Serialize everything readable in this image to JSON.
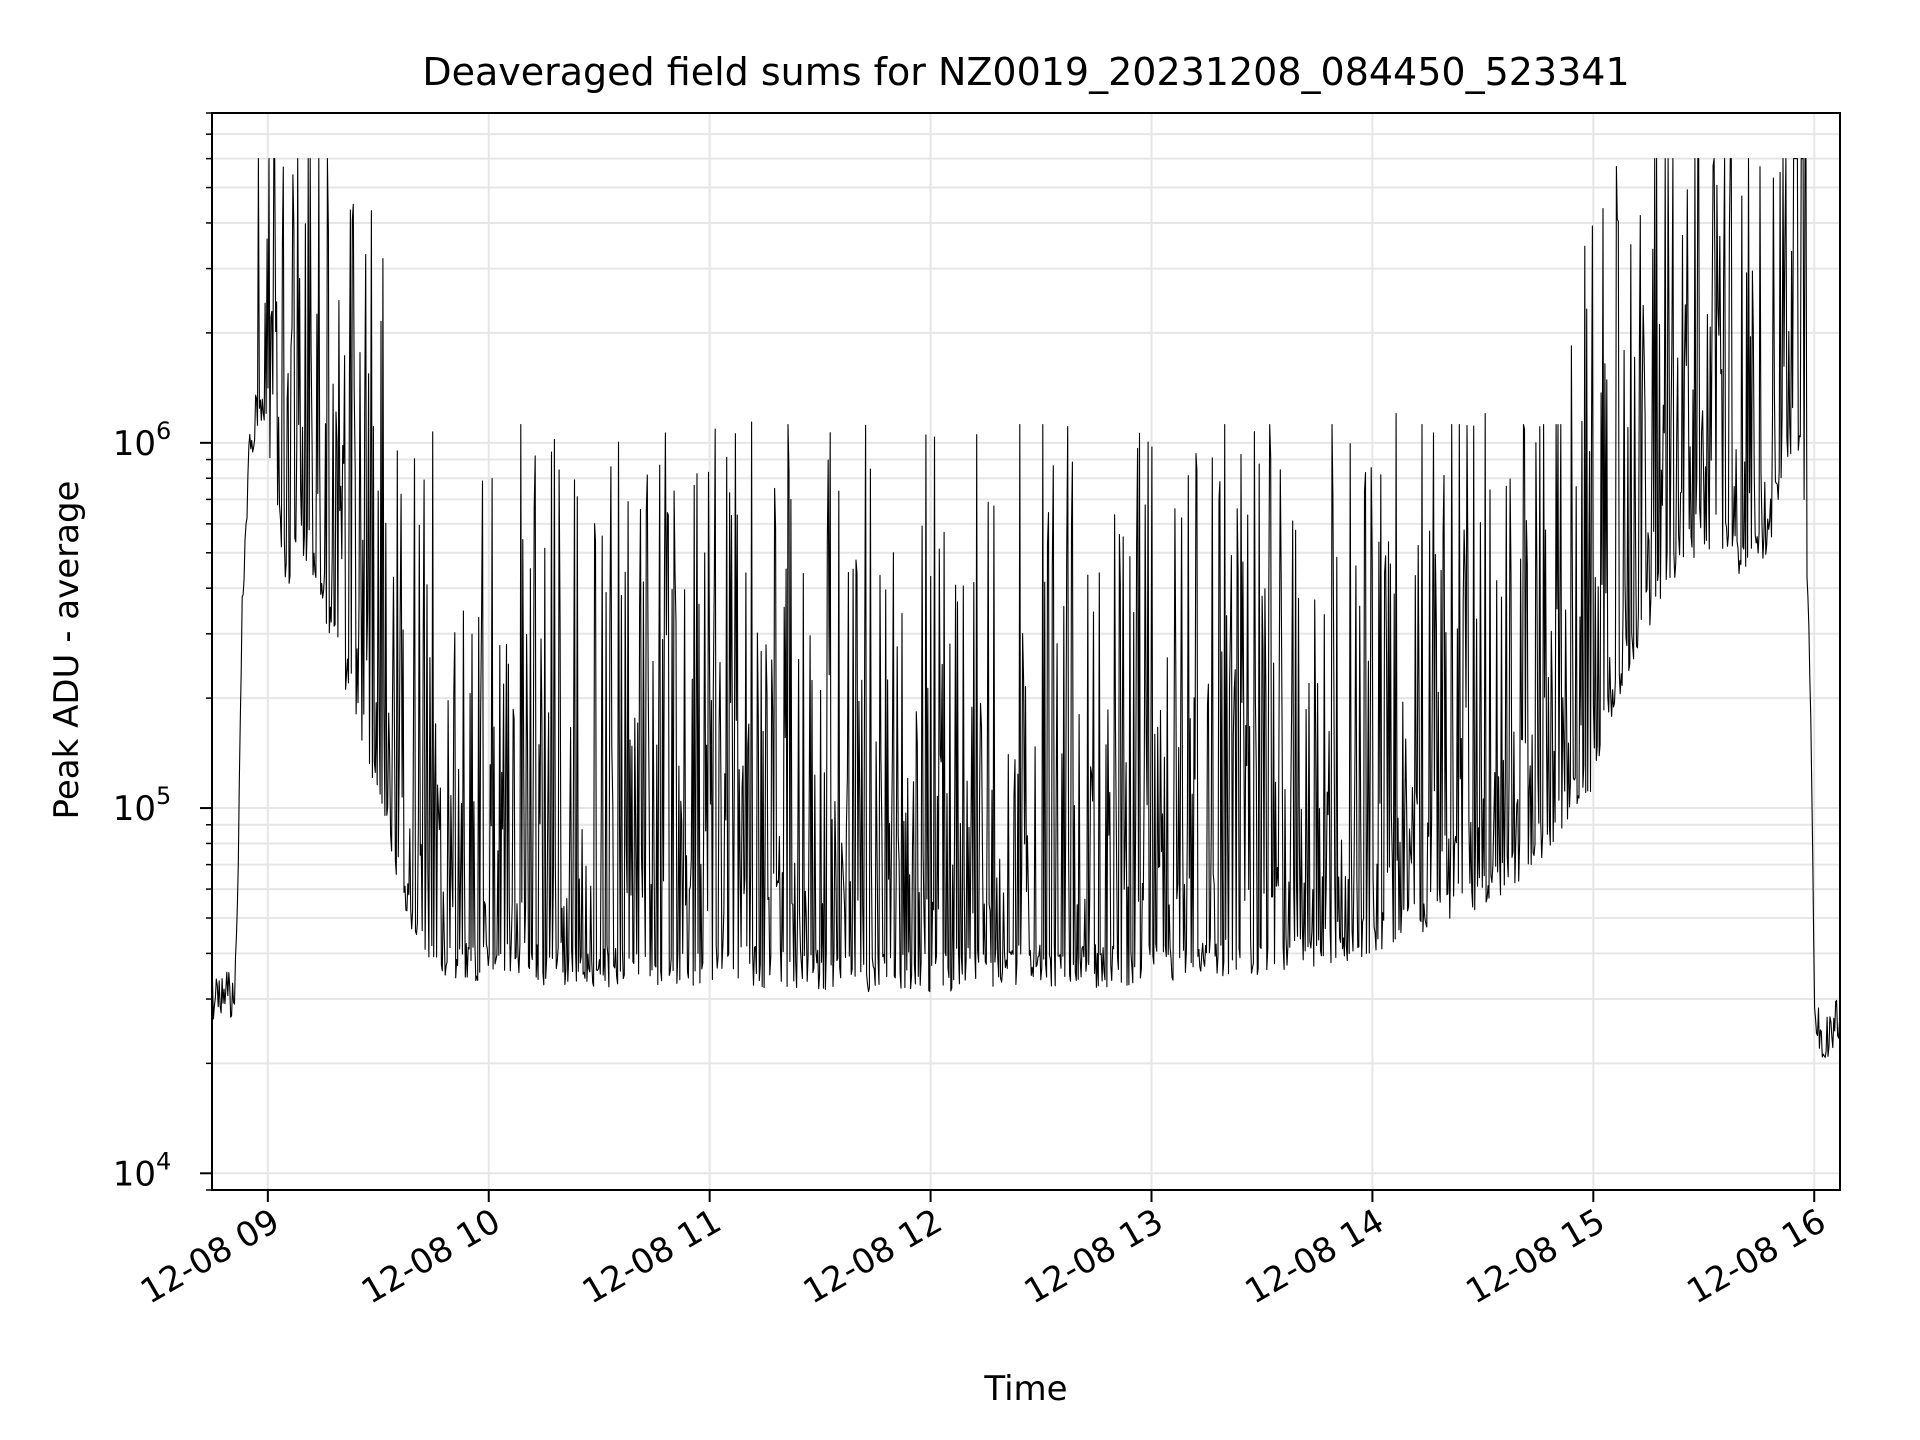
{
  "chart_data": {
    "type": "line",
    "title": "Deaveraged field sums for NZ0019_20231208_084450_523341",
    "xlabel": "Time",
    "ylabel": "Peak ADU - average",
    "yscale": "log",
    "xlim": [
      "2023-12-08 08:44:50",
      "2023-12-08 16:07:00"
    ],
    "ylim": [
      9000,
      8000000
    ],
    "x_ticks": [
      {
        "value": "2023-12-08 09:00",
        "label": "12-08 09"
      },
      {
        "value": "2023-12-08 10:00",
        "label": "12-08 10"
      },
      {
        "value": "2023-12-08 11:00",
        "label": "12-08 11"
      },
      {
        "value": "2023-12-08 12:00",
        "label": "12-08 12"
      },
      {
        "value": "2023-12-08 13:00",
        "label": "12-08 13"
      },
      {
        "value": "2023-12-08 14:00",
        "label": "12-08 14"
      },
      {
        "value": "2023-12-08 15:00",
        "label": "12-08 15"
      },
      {
        "value": "2023-12-08 16:00",
        "label": "12-08 16"
      }
    ],
    "y_ticks": [
      {
        "value": 10000,
        "base": "10",
        "exp": "4"
      },
      {
        "value": 100000,
        "base": "10",
        "exp": "5"
      },
      {
        "value": 1000000,
        "base": "10",
        "exp": "6"
      }
    ],
    "grid": true,
    "line_color": "#000000",
    "grid_color": "#e6e6e6",
    "series": [
      {
        "x": [
          "2023-12-08 08:44:50",
          "2023-12-08 08:48",
          "2023-12-08 08:51",
          "2023-12-08 08:52",
          "2023-12-08 08:53",
          "2023-12-08 08:55",
          "2023-12-08 08:57",
          "2023-12-08 08:59",
          "2023-12-08 09:02",
          "2023-12-08 09:05",
          "2023-12-08 09:10",
          "2023-12-08 09:15",
          "2023-12-08 09:20",
          "2023-12-08 09:25",
          "2023-12-08 09:30",
          "2023-12-08 09:35",
          "2023-12-08 09:40",
          "2023-12-08 09:45",
          "2023-12-08 09:50",
          "2023-12-08 10:00",
          "2023-12-08 10:30",
          "2023-12-08 11:00",
          "2023-12-08 11:30",
          "2023-12-08 12:00",
          "2023-12-08 12:30",
          "2023-12-08 13:00",
          "2023-12-08 13:30",
          "2023-12-08 14:00",
          "2023-12-08 14:30",
          "2023-12-08 14:45",
          "2023-12-08 15:00",
          "2023-12-08 15:10",
          "2023-12-08 15:20",
          "2023-12-08 15:30",
          "2023-12-08 15:40",
          "2023-12-08 15:47",
          "2023-12-08 15:52",
          "2023-12-08 15:55",
          "2023-12-08 15:57",
          "2023-12-08 15:59",
          "2023-12-08 16:00",
          "2023-12-08 16:02",
          "2023-12-08 16:04",
          "2023-12-08 16:06"
        ],
        "y": [
          30000,
          32000,
          30000,
          80000,
          350000,
          950000,
          1250000,
          1150000,
          700000,
          450000,
          550000,
          400000,
          250000,
          180000,
          120000,
          70000,
          50000,
          42000,
          38000,
          38000,
          37000,
          37000,
          36000,
          36000,
          37000,
          37000,
          40000,
          45000,
          60000,
          80000,
          130000,
          280000,
          450000,
          600000,
          500000,
          550000,
          900000,
          1200000,
          900000,
          200000,
          30000,
          22000,
          24000,
          26000
        ],
        "spike_count": 1700,
        "peak_max": 6000000
      }
    ]
  }
}
